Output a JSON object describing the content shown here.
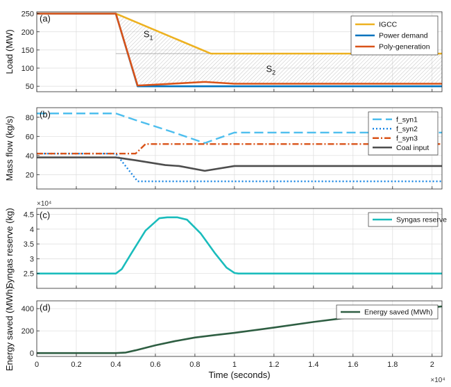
{
  "chart_data": [
    {
      "type": "line",
      "panel_label": "(a)",
      "ylabel": "Load (MW)",
      "xlim": [
        0,
        20500
      ],
      "ylim": [
        35,
        255
      ],
      "yticks": [
        50,
        100,
        150,
        200,
        250
      ],
      "annotations": [
        {
          "base": "S",
          "sub": "1",
          "x": 5400,
          "y": 185
        },
        {
          "base": "S",
          "sub": "2",
          "x": 11600,
          "y": 90
        }
      ],
      "legend_position": "top-right",
      "series": [
        {
          "name": "IGCC",
          "color": "#EDB120",
          "style": "solid",
          "x": [
            0,
            4000,
            8800,
            20500
          ],
          "y": [
            250,
            250,
            140,
            140
          ]
        },
        {
          "name": "Power demand",
          "color": "#0072BD",
          "style": "solid",
          "x": [
            0,
            4000,
            5100,
            20500
          ],
          "y": [
            250,
            250,
            50,
            50
          ]
        },
        {
          "name": "Poly-generation",
          "color": "#D95319",
          "style": "solid",
          "x": [
            0,
            4000,
            5100,
            6500,
            8500,
            10000,
            20500
          ],
          "y": [
            250,
            250,
            52,
            56,
            62,
            57,
            57
          ]
        }
      ]
    },
    {
      "type": "line",
      "panel_label": "(b)",
      "ylabel": "Mass flow (kg/s)",
      "xlim": [
        0,
        20500
      ],
      "ylim": [
        5,
        90
      ],
      "yticks": [
        20,
        40,
        60,
        80
      ],
      "legend_position": "top-right",
      "series": [
        {
          "name": "f_syn1",
          "color": "#4DBEEE",
          "style": "dashed",
          "x": [
            0,
            4000,
            5000,
            6800,
            8500,
            10000,
            20500
          ],
          "y": [
            84,
            84,
            77,
            65,
            53,
            64,
            64
          ]
        },
        {
          "name": "f_syn2",
          "color": "#1E88E5",
          "style": "dotted",
          "x": [
            0,
            4000,
            5100,
            20500
          ],
          "y": [
            42,
            42,
            13,
            13
          ]
        },
        {
          "name": "f_syn3",
          "color": "#D95319",
          "style": "dashdot",
          "x": [
            0,
            5000,
            5500,
            20500
          ],
          "y": [
            42,
            42,
            52,
            52
          ]
        },
        {
          "name": "Coal input",
          "color": "#4D4D4D",
          "style": "solid",
          "x": [
            0,
            4000,
            5000,
            6500,
            7200,
            8500,
            10000,
            20500
          ],
          "y": [
            38,
            38,
            35,
            30,
            29,
            24,
            29,
            29
          ]
        }
      ]
    },
    {
      "type": "line",
      "panel_label": "(c)",
      "ylabel": "Syngas reserve (kg)",
      "exponent_label": "×10⁴",
      "xlim": [
        0,
        20500
      ],
      "ylim": [
        20000,
        47000
      ],
      "yticks": [
        25000,
        30000,
        35000,
        40000,
        45000
      ],
      "ytick_labels": [
        "2.5",
        "3",
        "3.5",
        "4",
        "4.5"
      ],
      "legend_position": "top-right",
      "series": [
        {
          "name": "Syngas reserve",
          "color": "#1ABCBC",
          "style": "solid",
          "x": [
            0,
            4000,
            4300,
            4800,
            5500,
            6200,
            6600,
            7100,
            7600,
            8300,
            9000,
            9600,
            10000,
            10200,
            20500
          ],
          "y": [
            25000,
            25000,
            26500,
            32000,
            39500,
            43700,
            44000,
            44000,
            43200,
            38500,
            32000,
            27000,
            25200,
            25000,
            25000
          ]
        }
      ]
    },
    {
      "type": "line",
      "panel_label": "(d)",
      "ylabel": "Energy saved (MWh)",
      "xlabel": "Time (seconds)",
      "exponent_label": "×10⁴",
      "xlim": [
        0,
        20500
      ],
      "ylim": [
        -30,
        470
      ],
      "yticks": [
        0,
        200,
        400
      ],
      "xticks": [
        0,
        2000,
        4000,
        6000,
        8000,
        10000,
        12000,
        14000,
        16000,
        18000,
        20000
      ],
      "xtick_labels": [
        "0",
        "0.2",
        "0.4",
        "0.6",
        "0.8",
        "1",
        "1.2",
        "1.4",
        "1.6",
        "1.8",
        "2"
      ],
      "legend_position": "top-right",
      "series": [
        {
          "name": "Energy saved (MWh)",
          "color": "#2E5E42",
          "style": "solid",
          "x": [
            0,
            4000,
            4500,
            5000,
            6000,
            7000,
            8000,
            9000,
            10000,
            12000,
            14000,
            16000,
            18000,
            20500
          ],
          "y": [
            0,
            0,
            5,
            25,
            70,
            108,
            140,
            162,
            182,
            230,
            280,
            325,
            372,
            420
          ]
        }
      ]
    }
  ]
}
